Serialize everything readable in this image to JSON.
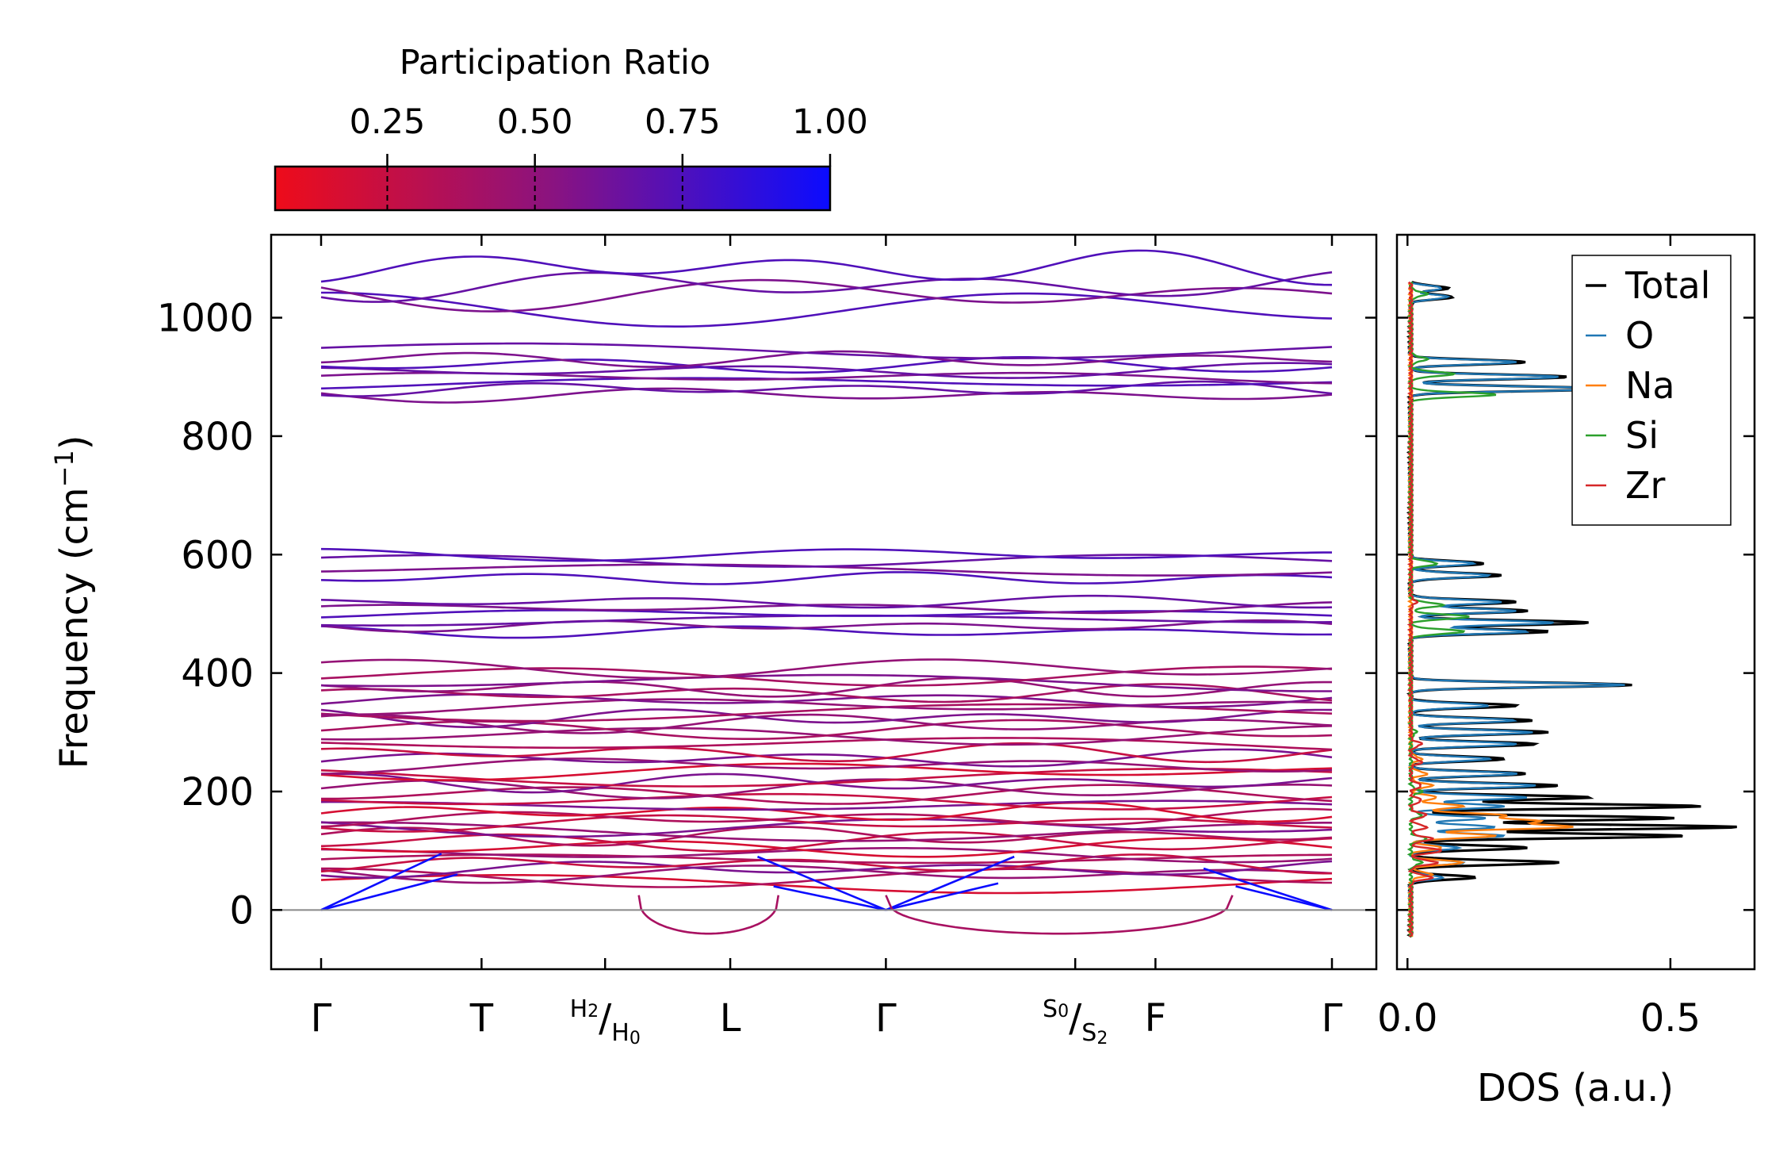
{
  "colorbar": {
    "title": "Participation Ratio",
    "ticks": [
      "0.25",
      "0.50",
      "0.75",
      "1.00"
    ],
    "tick_values": [
      0.25,
      0.5,
      0.75,
      1.0
    ],
    "range": [
      0.06,
      1.0
    ],
    "color_low": "#ee0c1a",
    "color_mid": "#8a1380",
    "color_high": "#0b0cff"
  },
  "chart_data": [
    {
      "type": "line",
      "name": "phonon-band-structure",
      "ylabel_prefix": "Frequency (cm",
      "ylabel_sup": "−1",
      "ylabel_suffix": ")",
      "ylim": [
        -100,
        1140
      ],
      "yticks": [
        0,
        200,
        400,
        600,
        800,
        1000
      ],
      "ytick_labels": [
        "0",
        "200",
        "400",
        "600",
        "800",
        "1000"
      ],
      "path_positions": [
        0,
        1,
        1.77,
        2.55,
        3.52,
        4.7,
        5.2,
        6.3
      ],
      "path_labels": [
        {
          "main": "Γ"
        },
        {
          "main": "T"
        },
        {
          "sup": "H",
          "supsub": "2",
          "slash": "/",
          "sub": "H",
          "subsub": "0"
        },
        {
          "main": "L"
        },
        {
          "main": "Γ"
        },
        {
          "sup": "S",
          "supsub": "0",
          "slash": "/",
          "sub": "S",
          "subsub": "2"
        },
        {
          "main": "F"
        },
        {
          "main": "Γ"
        }
      ],
      "zero_line": 0,
      "band_frequencies": [
        45,
        55,
        62,
        70,
        78,
        85,
        95,
        105,
        115,
        125,
        133,
        140,
        148,
        155,
        165,
        175,
        185,
        195,
        205,
        215,
        225,
        235,
        245,
        255,
        265,
        280,
        295,
        305,
        315,
        325,
        335,
        345,
        355,
        365,
        375,
        385,
        395,
        408,
        470,
        480,
        490,
        500,
        510,
        520,
        560,
        575,
        590,
        600,
        870,
        880,
        890,
        900,
        910,
        920,
        930,
        945,
        1015,
        1040,
        1055,
        1085
      ],
      "acoustic_gamma_points": [
        0,
        3.52,
        6.3
      ],
      "soft_mode_min": -40,
      "soft_mode_regions": [
        [
          1.98,
          2.85
        ],
        [
          3.52,
          5.68
        ]
      ]
    },
    {
      "type": "line",
      "name": "density-of-states",
      "xlabel": "DOS (a.u.)",
      "xlim": [
        -0.02,
        0.66
      ],
      "xticks": [
        0.0,
        0.5
      ],
      "xtick_labels": [
        "0.0",
        "0.5"
      ],
      "ylim": [
        -100,
        1140
      ],
      "legend_position": "top-right",
      "series": [
        {
          "name": "Total",
          "color": "#000000",
          "peaks": [
            [
              55,
              0.12
            ],
            [
              80,
              0.28
            ],
            [
              105,
              0.22
            ],
            [
              125,
              0.52
            ],
            [
              140,
              0.62
            ],
            [
              155,
              0.5
            ],
            [
              175,
              0.55
            ],
            [
              190,
              0.34
            ],
            [
              210,
              0.28
            ],
            [
              230,
              0.22
            ],
            [
              255,
              0.18
            ],
            [
              280,
              0.24
            ],
            [
              300,
              0.26
            ],
            [
              320,
              0.23
            ],
            [
              345,
              0.2
            ],
            [
              380,
              0.42
            ],
            [
              470,
              0.26
            ],
            [
              485,
              0.34
            ],
            [
              505,
              0.22
            ],
            [
              520,
              0.2
            ],
            [
              565,
              0.17
            ],
            [
              585,
              0.14
            ],
            [
              880,
              0.38
            ],
            [
              900,
              0.3
            ],
            [
              925,
              0.22
            ],
            [
              1035,
              0.08
            ],
            [
              1050,
              0.07
            ]
          ]
        },
        {
          "name": "O",
          "color": "#1f77b4",
          "peaks": [
            [
              55,
              0.06
            ],
            [
              80,
              0.1
            ],
            [
              105,
              0.09
            ],
            [
              125,
              0.18
            ],
            [
              140,
              0.16
            ],
            [
              155,
              0.14
            ],
            [
              175,
              0.18
            ],
            [
              190,
              0.22
            ],
            [
              210,
              0.24
            ],
            [
              230,
              0.2
            ],
            [
              255,
              0.15
            ],
            [
              280,
              0.2
            ],
            [
              300,
              0.23
            ],
            [
              320,
              0.2
            ],
            [
              345,
              0.15
            ],
            [
              380,
              0.41
            ],
            [
              470,
              0.22
            ],
            [
              485,
              0.27
            ],
            [
              505,
              0.2
            ],
            [
              520,
              0.17
            ],
            [
              565,
              0.15
            ],
            [
              585,
              0.12
            ],
            [
              880,
              0.37
            ],
            [
              900,
              0.28
            ],
            [
              925,
              0.2
            ],
            [
              1035,
              0.07
            ],
            [
              1050,
              0.06
            ]
          ]
        },
        {
          "name": "Na",
          "color": "#ff7f0e",
          "peaks": [
            [
              60,
              0.04
            ],
            [
              80,
              0.1
            ],
            [
              105,
              0.06
            ],
            [
              125,
              0.16
            ],
            [
              140,
              0.3
            ],
            [
              150,
              0.23
            ],
            [
              160,
              0.17
            ],
            [
              175,
              0.1
            ],
            [
              190,
              0.05
            ],
            [
              210,
              0.04
            ],
            [
              230,
              0.03
            ],
            [
              255,
              0.02
            ]
          ]
        },
        {
          "name": "Si",
          "color": "#2ca02c",
          "peaks": [
            [
              80,
              0.02
            ],
            [
              120,
              0.03
            ],
            [
              160,
              0.02
            ],
            [
              200,
              0.02
            ],
            [
              300,
              0.01
            ],
            [
              470,
              0.1
            ],
            [
              495,
              0.11
            ],
            [
              515,
              0.06
            ],
            [
              585,
              0.05
            ],
            [
              870,
              0.16
            ],
            [
              905,
              0.08
            ],
            [
              930,
              0.03
            ],
            [
              1040,
              0.03
            ]
          ]
        },
        {
          "name": "Zr",
          "color": "#d62728",
          "peaks": [
            [
              55,
              0.04
            ],
            [
              80,
              0.05
            ],
            [
              100,
              0.06
            ],
            [
              120,
              0.04
            ],
            [
              140,
              0.03
            ],
            [
              160,
              0.03
            ],
            [
              185,
              0.02
            ],
            [
              210,
              0.02
            ],
            [
              250,
              0.02
            ],
            [
              280,
              0.02
            ],
            [
              520,
              0.01
            ]
          ]
        }
      ]
    }
  ]
}
